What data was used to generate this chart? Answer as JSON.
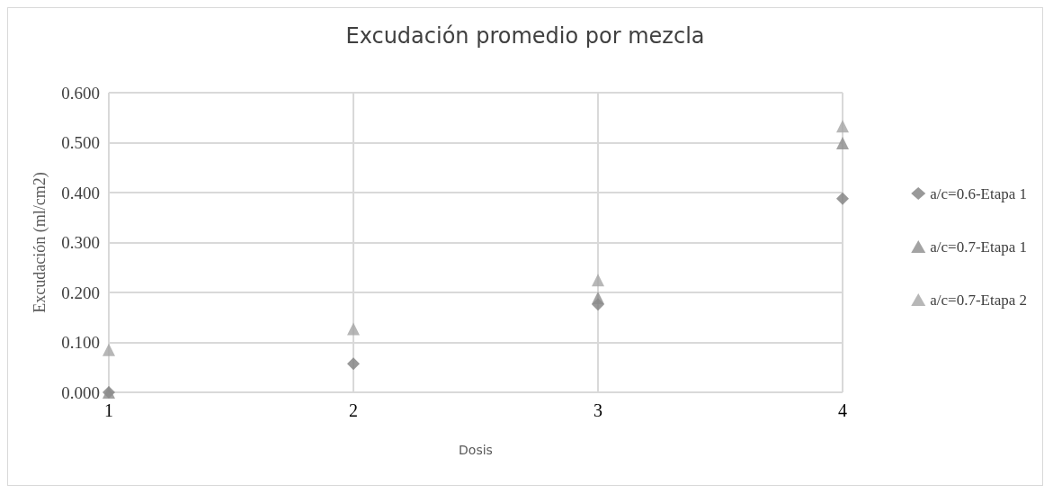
{
  "chart_data": {
    "type": "scatter",
    "title": "Excudación promedio por mezcla",
    "xlabel": "Dosis",
    "ylabel": "Excudación (ml/cm2)",
    "x": [
      1,
      2,
      3,
      4
    ],
    "series": [
      {
        "name": "a/c=0.6-Etapa 1",
        "color": "#7f7f7f",
        "marker": "diamond",
        "values": [
          0.0,
          0.057,
          0.176,
          0.388
        ]
      },
      {
        "name": "a/c=0.7-Etapa 1",
        "color": "#8c8c8c",
        "marker": "triangle",
        "values": [
          0.0,
          null,
          0.189,
          0.499
        ]
      },
      {
        "name": "a/c=0.7-Etapa 2",
        "color": "#a5a5a5",
        "marker": "triangle",
        "values": [
          0.085,
          0.127,
          0.225,
          0.533
        ]
      }
    ],
    "xlim": [
      1,
      4
    ],
    "xticks": [
      1,
      2,
      3,
      4
    ],
    "ylim": [
      0,
      0.6
    ],
    "yticks": [
      {
        "value": 0,
        "label": "0.000"
      },
      {
        "value": 0.1,
        "label": "0.100"
      },
      {
        "value": 0.2,
        "label": "0.200"
      },
      {
        "value": 0.3,
        "label": "0.300"
      },
      {
        "value": 0.4,
        "label": "0.400"
      },
      {
        "value": 0.5,
        "label": "0.500"
      },
      {
        "value": 0.6,
        "label": "0.600"
      }
    ],
    "grid": true,
    "legend": "right"
  }
}
